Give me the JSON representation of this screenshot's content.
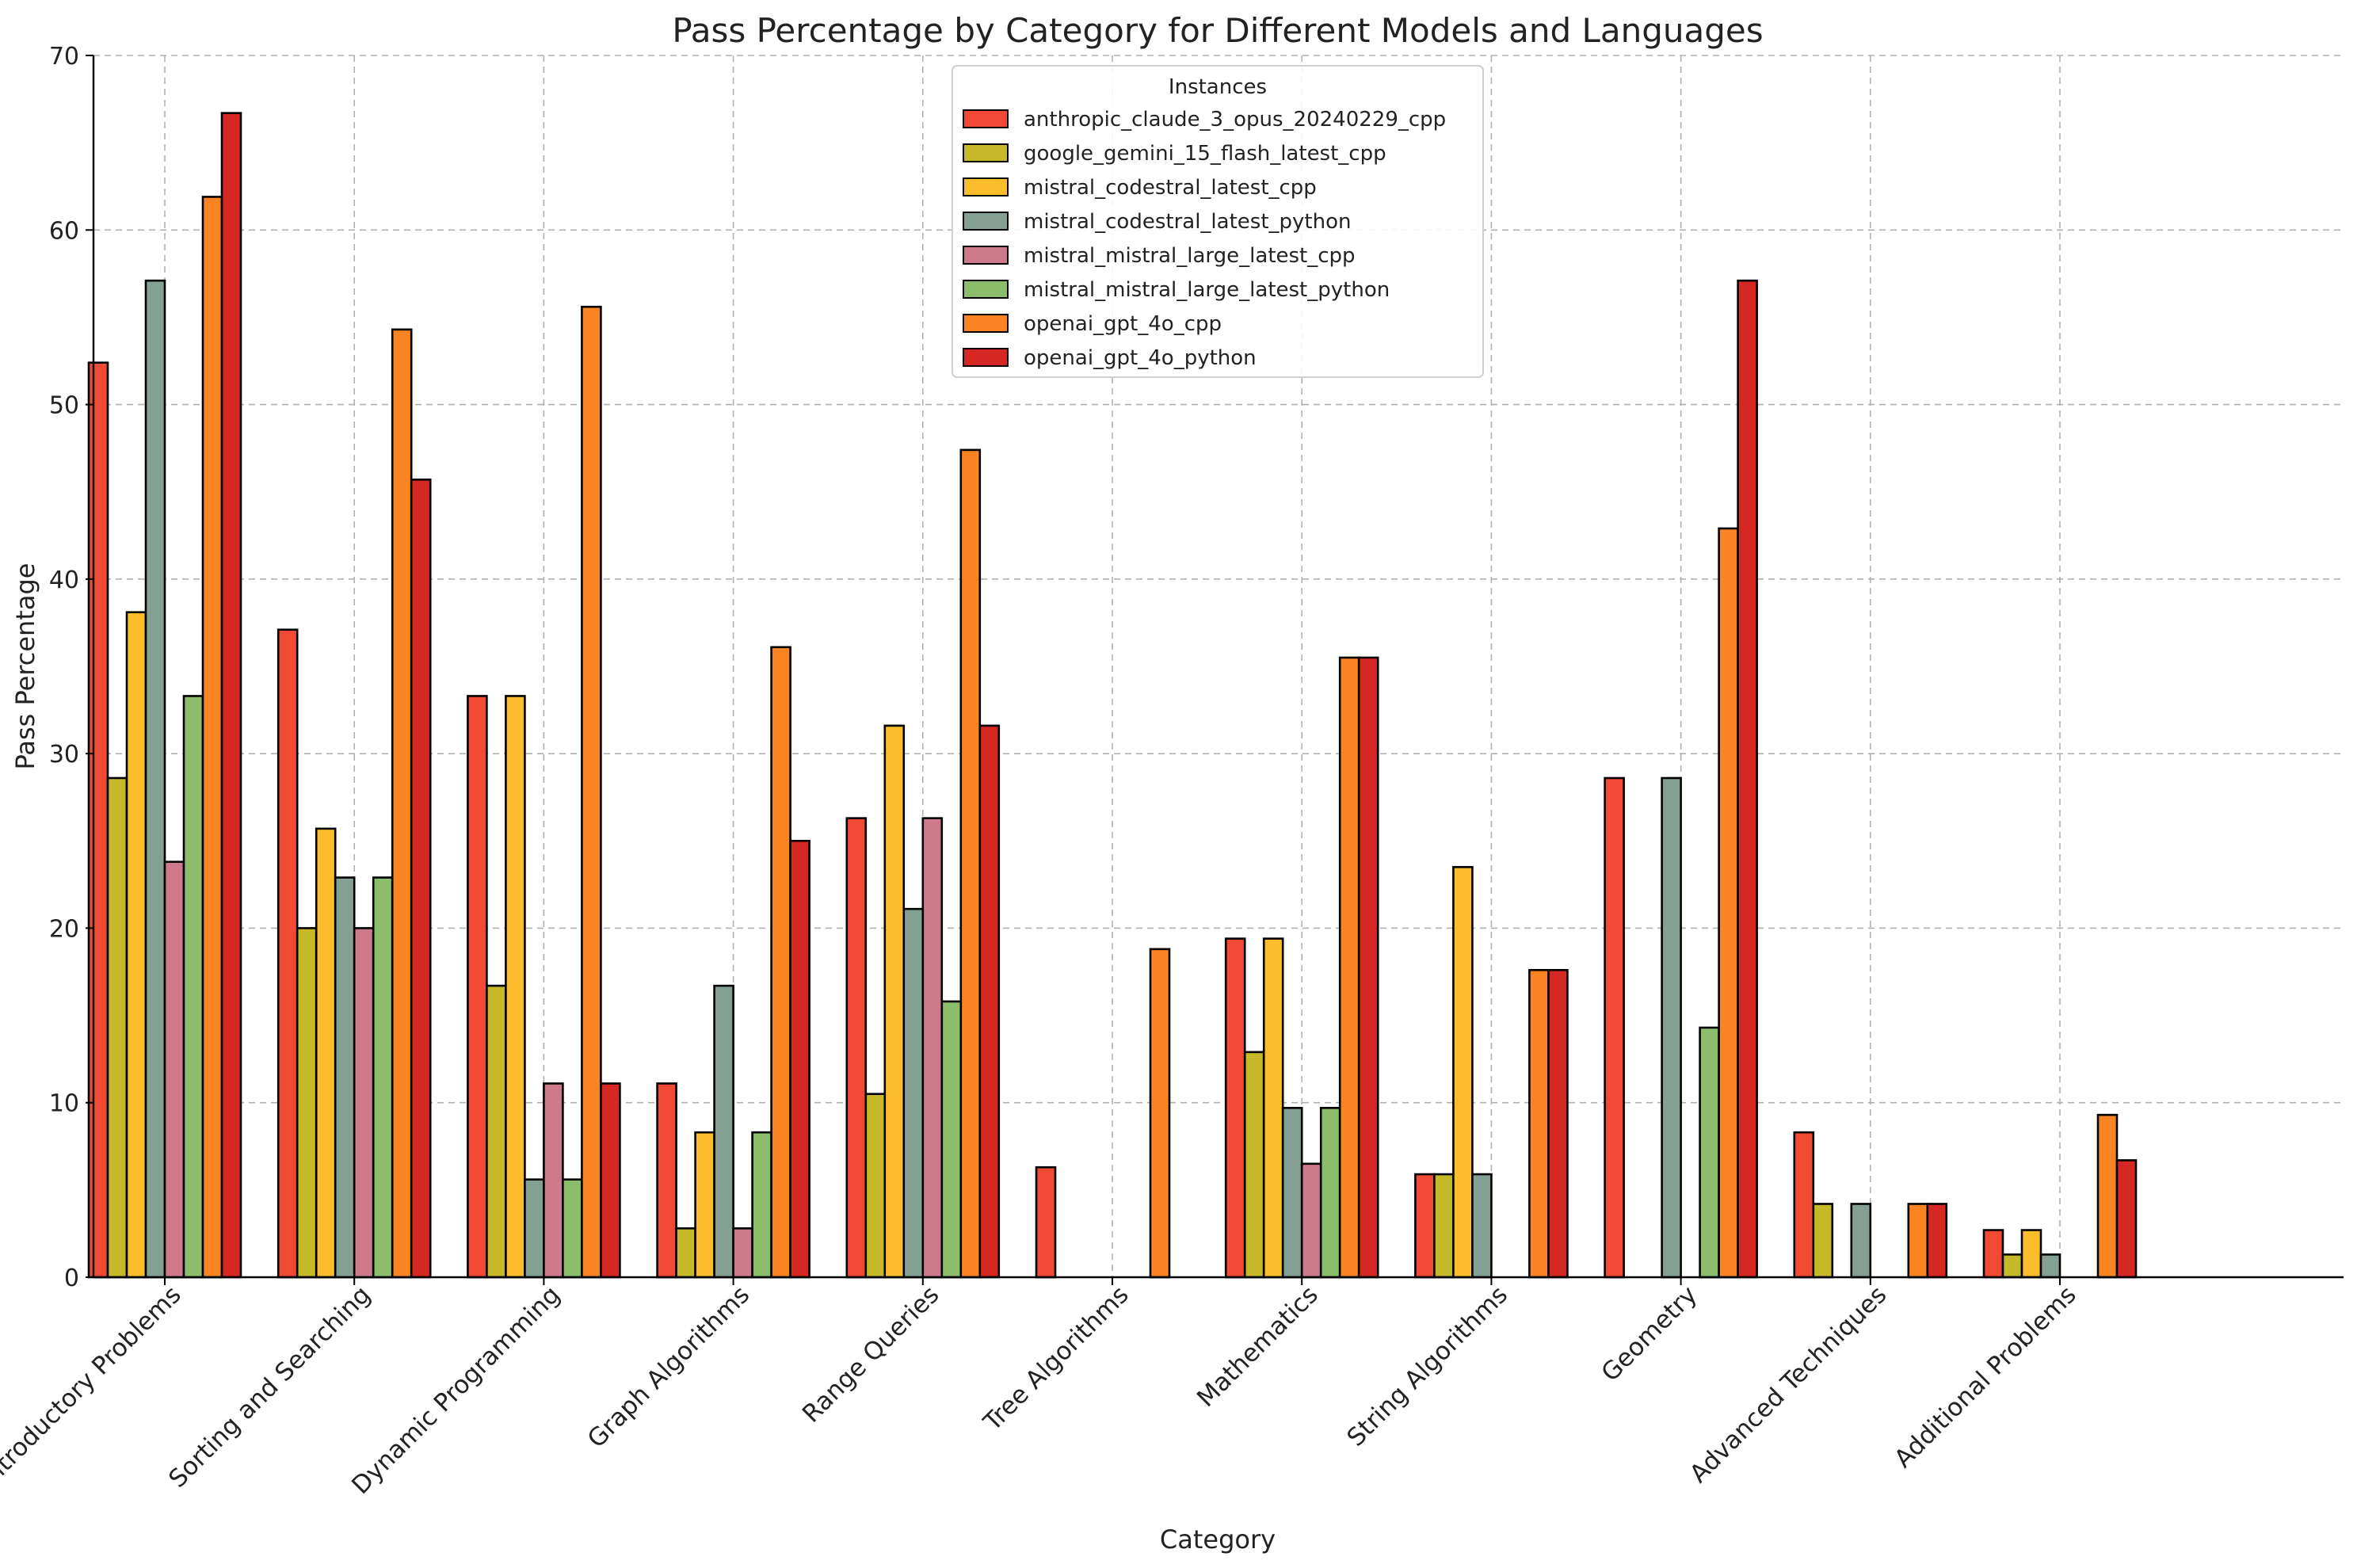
{
  "chart_data": {
    "type": "bar",
    "title": "Pass Percentage by Category for Different Models and Languages",
    "xlabel": "Category",
    "ylabel": "Pass Percentage",
    "ylim": [
      0,
      70
    ],
    "yticks": [
      0,
      10,
      20,
      30,
      40,
      50,
      60,
      70
    ],
    "grid": true,
    "legend": {
      "title": "Instances",
      "placement": "top-center"
    },
    "categories": [
      "Introductory Problems",
      "Sorting and Searching",
      "Dynamic Programming",
      "Graph Algorithms",
      "Range Queries",
      "Tree Algorithms",
      "Mathematics",
      "String Algorithms",
      "Geometry",
      "Advanced Techniques",
      "Additional Problems"
    ],
    "series": [
      {
        "name": "anthropic_claude_3_opus_20240229_cpp",
        "color": "#f14a34",
        "values": [
          52.4,
          37.1,
          33.3,
          11.1,
          26.3,
          6.3,
          19.4,
          5.9,
          28.6,
          8.3,
          2.7
        ]
      },
      {
        "name": "google_gemini_15_flash_latest_cpp",
        "color": "#c5b92a",
        "values": [
          28.6,
          20.0,
          16.7,
          2.8,
          10.5,
          0,
          12.9,
          5.9,
          0,
          4.2,
          1.3
        ]
      },
      {
        "name": "mistral_codestral_latest_cpp",
        "color": "#fbbd2c",
        "values": [
          38.1,
          25.7,
          33.3,
          8.3,
          31.6,
          0,
          19.4,
          23.5,
          0,
          0,
          2.7
        ]
      },
      {
        "name": "mistral_codestral_latest_python",
        "color": "#83a092",
        "values": [
          57.1,
          22.9,
          5.6,
          16.7,
          21.1,
          0,
          9.7,
          5.9,
          28.6,
          4.2,
          1.3
        ]
      },
      {
        "name": "mistral_mistral_large_latest_cpp",
        "color": "#cf7a8c",
        "values": [
          23.8,
          20.0,
          11.1,
          2.8,
          26.3,
          0,
          6.5,
          0,
          0,
          0,
          0
        ]
      },
      {
        "name": "mistral_mistral_large_latest_python",
        "color": "#8cbd6a",
        "values": [
          33.3,
          22.9,
          5.6,
          8.3,
          15.8,
          0,
          9.7,
          0,
          14.3,
          0,
          0
        ]
      },
      {
        "name": "openai_gpt_4o_cpp",
        "color": "#fb8422",
        "values": [
          61.9,
          54.3,
          55.6,
          36.1,
          47.4,
          18.8,
          35.5,
          17.6,
          42.9,
          4.2,
          9.3
        ]
      },
      {
        "name": "openai_gpt_4o_python",
        "color": "#d62823",
        "values": [
          66.7,
          45.7,
          11.1,
          25.0,
          31.6,
          0,
          35.5,
          17.6,
          57.1,
          4.2,
          6.7
        ]
      }
    ]
  }
}
